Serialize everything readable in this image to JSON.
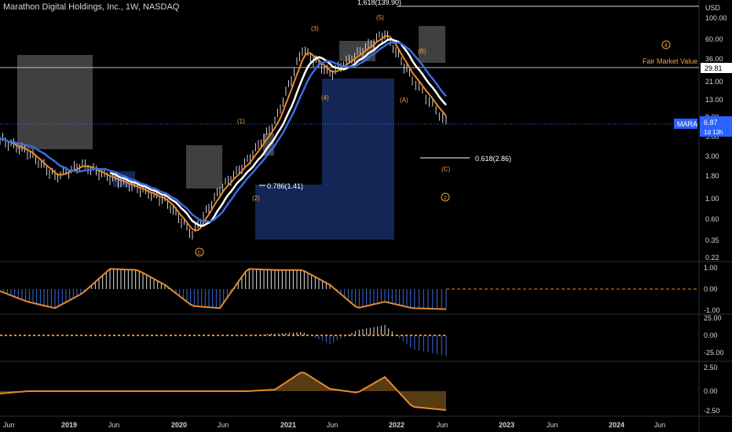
{
  "header": {
    "title": "Marathon Digital Holdings, Inc., 1W, NASDAQ"
  },
  "colors": {
    "background": "#000000",
    "price_bar": "#d1d4dc",
    "ema_fast": "#e8892b",
    "ema_slow": "#ffffff",
    "blue_line": "#3a6be0",
    "gray_box": "#555555",
    "blue_box": "#14285a",
    "label_orange": "#f0a040",
    "badge_blue": "#2962ff"
  },
  "price_axis": {
    "currency": "USD",
    "ticks": [
      "100.00",
      "60.00",
      "36.00",
      "21.00",
      "13.00",
      "8.00",
      "5.00",
      "3.00",
      "1.80",
      "1.00",
      "0.60",
      "0.35",
      "0.22"
    ],
    "current_price_label": "29.81",
    "symbol_badge": "MARA",
    "last_price": "6.87",
    "countdown": "1d 13h"
  },
  "oscillator_axes": {
    "pane1_ticks": [
      "1.00",
      "0.00",
      "-1.00"
    ],
    "pane2_ticks": [
      "25.00",
      "0.00",
      "-25.00"
    ],
    "pane3_ticks": [
      "2.50",
      "0.00",
      "-2.50"
    ]
  },
  "time_axis": {
    "labels": [
      "Jun",
      "2019",
      "Jun",
      "2020",
      "Jun",
      "2021",
      "Jun",
      "2022",
      "Jun",
      "2023",
      "Jun",
      "2024",
      "Jun"
    ]
  },
  "annotations": {
    "top_fib": "1.618(139.90)",
    "fair_market_value": "Fair Market Value",
    "fib_0786": "0.786(1.41)",
    "fib_0618": "0.618(2.86)",
    "wave_1": "(1)",
    "wave_2": "(2)",
    "wave_3": "(3)",
    "wave_4": "(4)",
    "wave_5": "(5)",
    "wave_A": "(A)",
    "wave_B": "(B)",
    "wave_C": "(C)",
    "circle_C": "C",
    "circle_2": "2",
    "circle_4": "4"
  },
  "chart_data": {
    "type": "line",
    "title": "Marathon Digital Holdings, Inc., 1W, NASDAQ",
    "yscale": "log",
    "ylim": [
      0.22,
      139.9
    ],
    "x": [
      "2018-06",
      "2018-09",
      "2018-12",
      "2019-03",
      "2019-06",
      "2019-09",
      "2019-12",
      "2020-03",
      "2020-06",
      "2020-09",
      "2020-12",
      "2021-03",
      "2021-06",
      "2021-09",
      "2021-12",
      "2022-03",
      "2022-06"
    ],
    "series": [
      {
        "values": [
          4.5,
          3.3,
          1.75,
          2.35,
          1.7,
          1.3,
          0.95,
          0.4,
          1.25,
          2.6,
          7.0,
          45,
          24,
          40,
          68,
          21,
          6.87
        ]
      }
    ],
    "levels": {
      "fair_market_value": 29.81,
      "fib_1_618": 139.9,
      "fib_0_786": 1.41,
      "fib_0_618": 2.86,
      "last_price": 6.87
    }
  }
}
